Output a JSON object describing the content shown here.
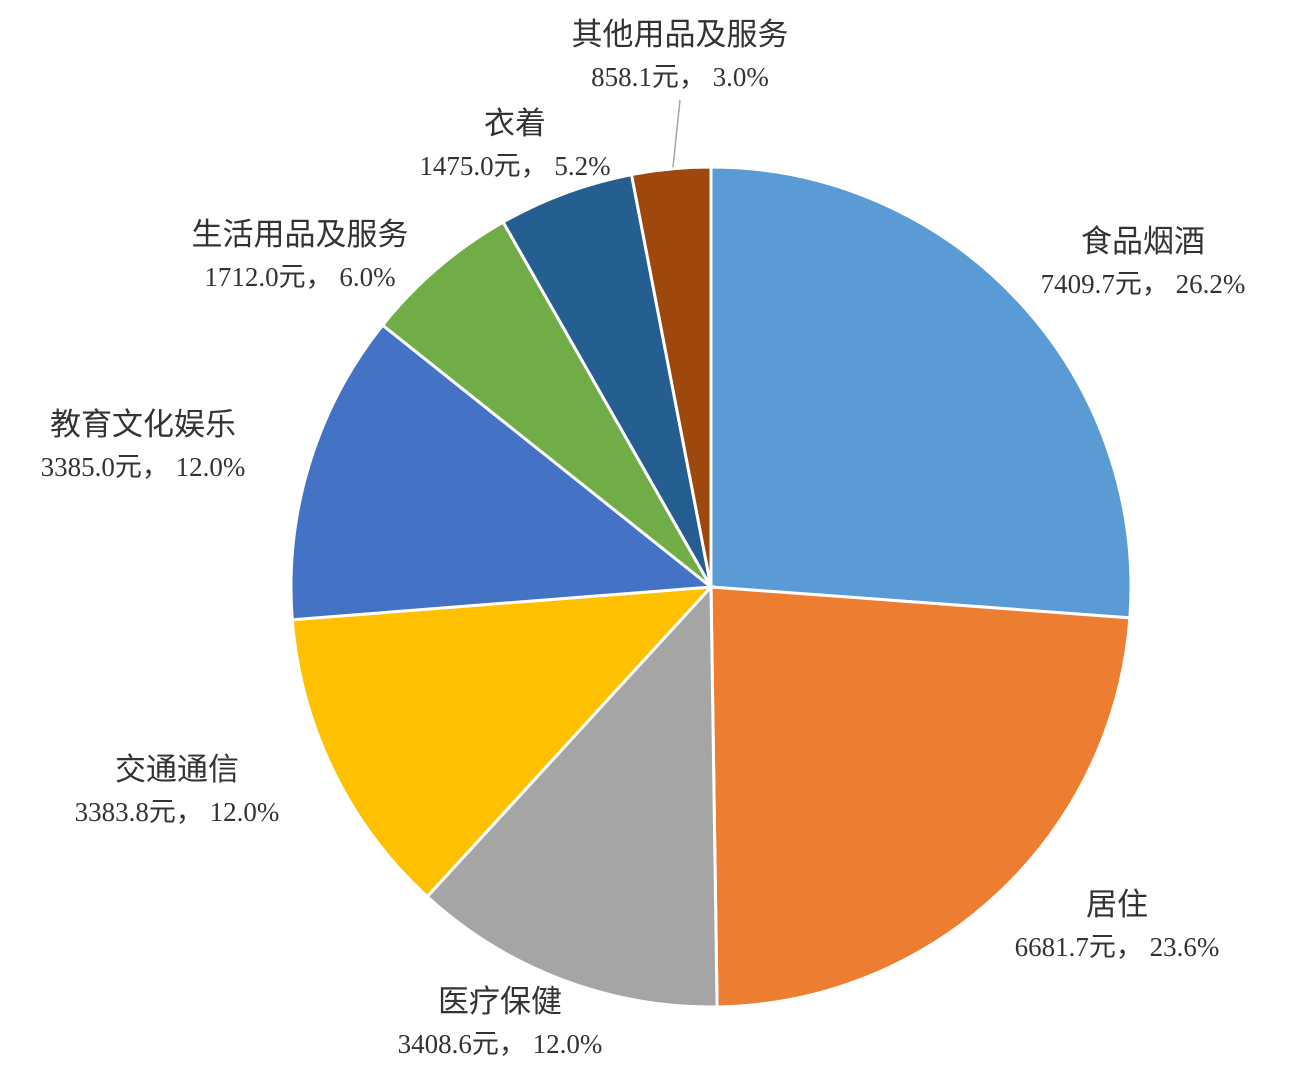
{
  "chart_data": {
    "type": "pie",
    "categories": [
      "食品烟酒",
      "居住",
      "医疗保健",
      "交通通信",
      "教育文化娱乐",
      "生活用品及服务",
      "衣着",
      "其他用品及服务"
    ],
    "values": [
      7409.7,
      6681.7,
      3408.6,
      3383.8,
      3385.0,
      1712.0,
      1475.0,
      858.1
    ],
    "value_labels": [
      "7409.7元， 26.2%",
      "6681.7元， 23.6%",
      "3408.6元， 12.0%",
      "3383.8元， 12.0%",
      "3385.0元， 12.0%",
      "1712.0元， 6.0%",
      "1475.0元， 5.2%",
      "858.1元， 3.0%"
    ],
    "colors": [
      "#5b9bd5",
      "#ed7d31",
      "#a5a5a5",
      "#ffc000",
      "#4472c4",
      "#70ad47",
      "#255e91",
      "#9e480e"
    ]
  }
}
